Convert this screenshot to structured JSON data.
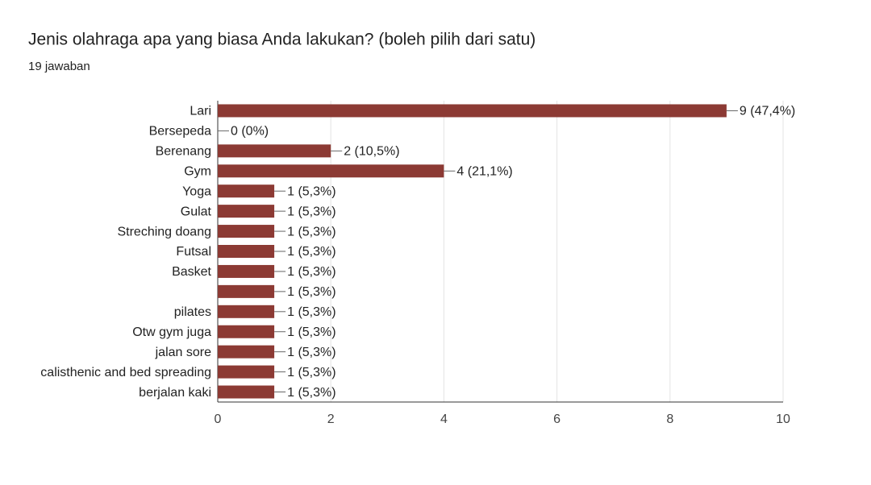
{
  "chart_data": {
    "type": "bar",
    "orientation": "horizontal",
    "title": "Jenis olahraga apa yang biasa Anda lakukan? (boleh pilih dari satu)",
    "subtitle": "19 jawaban",
    "categories": [
      "Lari",
      "Bersepeda",
      "Berenang",
      "Gym",
      "Yoga",
      "Gulat",
      "Streching doang",
      "Futsal",
      "Basket",
      null,
      "pilates",
      "Otw gym juga",
      "jalan sore",
      "calisthenic and bed spreading",
      "berjalan kaki"
    ],
    "values": [
      9,
      0,
      2,
      4,
      1,
      1,
      1,
      1,
      1,
      1,
      1,
      1,
      1,
      1,
      1
    ],
    "value_labels": [
      "9 (47,4%)",
      "0 (0%)",
      "2 (10,5%)",
      "4 (21,1%)",
      "1 (5,3%)",
      "1 (5,3%)",
      "1 (5,3%)",
      "1 (5,3%)",
      "1 (5,3%)",
      "1 (5,3%)",
      "1 (5,3%)",
      "1 (5,3%)",
      "1 (5,3%)",
      "1 (5,3%)",
      "1 (5,3%)"
    ],
    "color": "#8c3a34",
    "xlim": [
      0,
      10
    ],
    "xticks": [
      0,
      2,
      4,
      6,
      8,
      10
    ],
    "grid": true
  }
}
